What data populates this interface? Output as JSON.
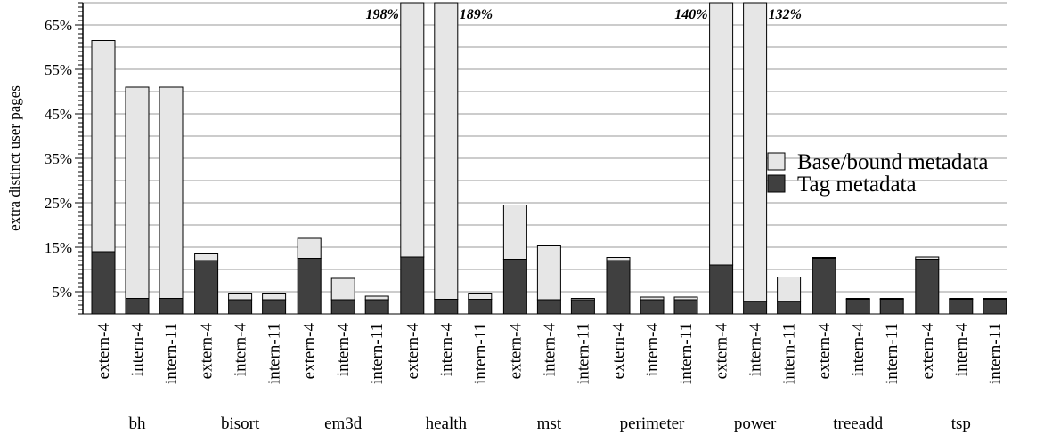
{
  "chart_data": {
    "type": "bar",
    "stacked": true,
    "ylabel": "extra distinct user pages",
    "ylim": [
      0,
      70
    ],
    "yticks": [
      5,
      15,
      25,
      35,
      45,
      55,
      65
    ],
    "ytick_labels": [
      "5%",
      "15%",
      "25%",
      "35%",
      "45%",
      "55%",
      "65%"
    ],
    "grid": true,
    "legend_position": "right",
    "configs": [
      "extern-4",
      "intern-4",
      "intern-11"
    ],
    "groups": [
      {
        "name": "bh",
        "tag": [
          14,
          3.5,
          3.5
        ],
        "total": [
          61.5,
          51,
          51
        ],
        "labels": [
          "",
          "",
          ""
        ]
      },
      {
        "name": "bisort",
        "tag": [
          12,
          3.2,
          3.2
        ],
        "total": [
          13.5,
          4.5,
          4.5
        ],
        "labels": [
          "",
          "",
          ""
        ]
      },
      {
        "name": "em3d",
        "tag": [
          12.5,
          3.2,
          3.2
        ],
        "total": [
          17,
          8,
          4
        ],
        "labels": [
          "",
          "",
          ""
        ]
      },
      {
        "name": "health",
        "tag": [
          12.8,
          3.3,
          3.3
        ],
        "total": [
          198,
          189,
          4.5
        ],
        "labels": [
          "198%",
          "189%",
          ""
        ]
      },
      {
        "name": "mst",
        "tag": [
          12.3,
          3.2,
          3.2
        ],
        "total": [
          24.5,
          15.3,
          3.5
        ],
        "labels": [
          "",
          "",
          ""
        ]
      },
      {
        "name": "perimeter",
        "tag": [
          12,
          3.2,
          3.2
        ],
        "total": [
          12.7,
          3.8,
          3.8
        ],
        "labels": [
          "",
          "",
          ""
        ]
      },
      {
        "name": "power",
        "tag": [
          11,
          2.8,
          2.8
        ],
        "total": [
          140,
          132,
          8.3
        ],
        "labels": [
          "140%",
          "132%",
          ""
        ]
      },
      {
        "name": "treeadd",
        "tag": [
          12.5,
          3.3,
          3.3
        ],
        "total": [
          12.7,
          3.5,
          3.5
        ],
        "labels": [
          "",
          "",
          ""
        ]
      },
      {
        "name": "tsp",
        "tag": [
          12.3,
          3.3,
          3.3
        ],
        "total": [
          12.8,
          3.5,
          3.5
        ],
        "labels": [
          "",
          "",
          ""
        ]
      }
    ],
    "series": [
      {
        "name": "Base/bound metadata",
        "color": "#e6e6e6"
      },
      {
        "name": "Tag metadata",
        "color": "#404040"
      }
    ]
  }
}
